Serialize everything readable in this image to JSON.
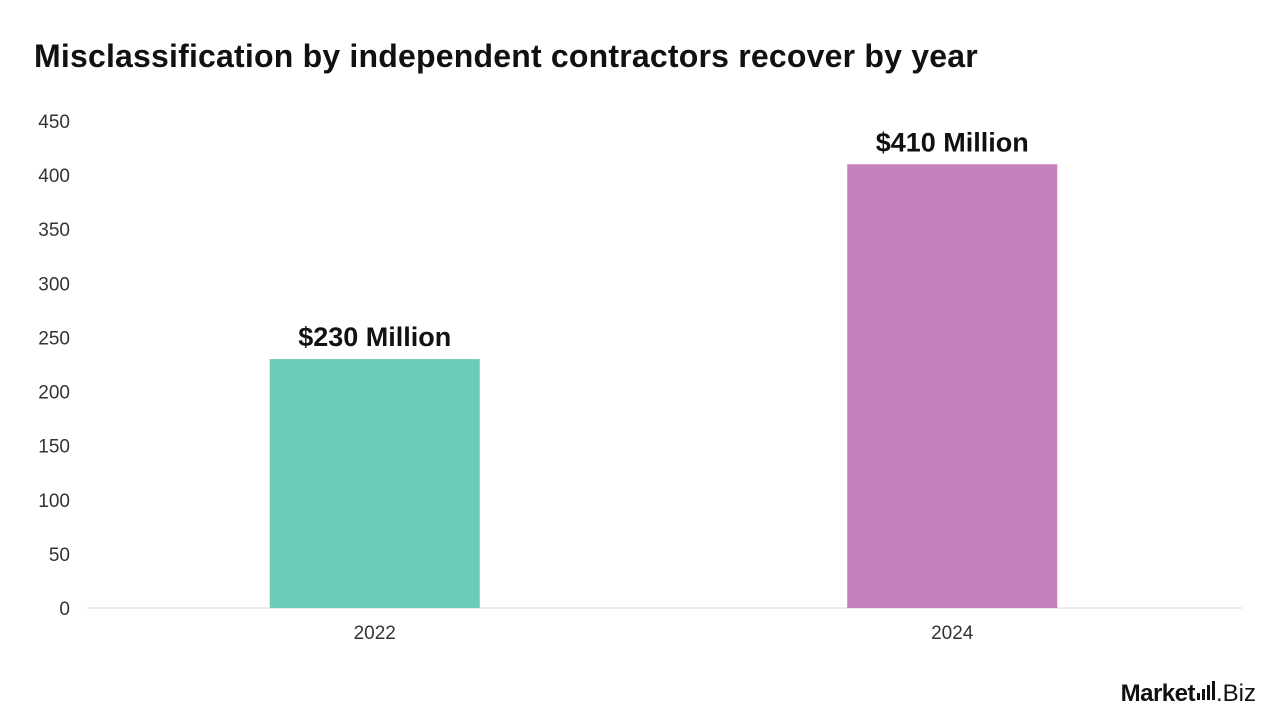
{
  "chart_data": {
    "type": "bar",
    "title": "Misclassification by independent contractors recover by year",
    "categories": [
      "2022",
      "2024"
    ],
    "values": [
      230,
      410
    ],
    "data_labels": [
      "$230 Million",
      "$410 Million"
    ],
    "bar_colors": [
      "#6bcdb8",
      "#c47fbd"
    ],
    "xlabel": "",
    "ylabel": "",
    "ylim": [
      0,
      450
    ],
    "yticks": [
      0,
      50,
      100,
      150,
      200,
      250,
      300,
      350,
      400,
      450
    ],
    "grid": false,
    "legend": "none"
  },
  "branding": {
    "logo_main": "Market",
    "logo_suffix": ".Biz"
  }
}
